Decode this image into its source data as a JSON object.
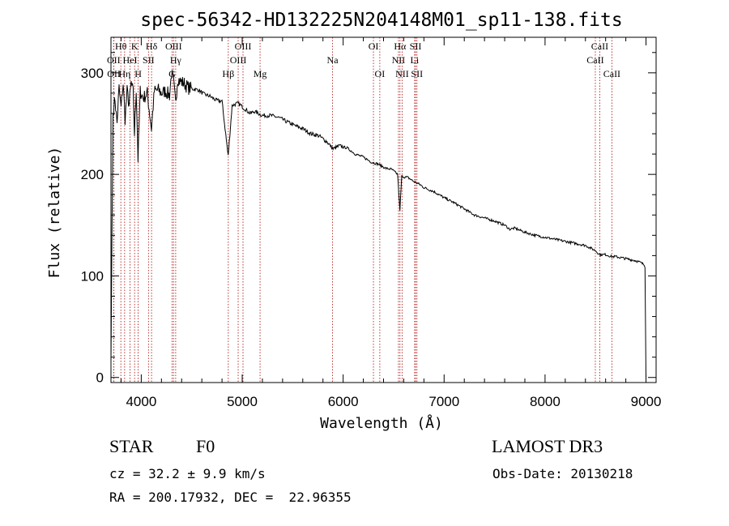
{
  "chart_data": {
    "type": "line",
    "title": "spec-56342-HD132225N204148M01_sp11-138.fits",
    "xlabel": "Wavelength (Å)",
    "ylabel": "Flux (relative)",
    "xlim": [
      3700,
      9100
    ],
    "ylim": [
      -5,
      335
    ],
    "x_ticks": [
      4000,
      5000,
      6000,
      7000,
      8000,
      9000
    ],
    "y_ticks": [
      0,
      100,
      200,
      300
    ],
    "series": [
      {
        "name": "spectrum",
        "x": [
          3700,
          3710,
          3720,
          3740,
          3760,
          3780,
          3800,
          3820,
          3840,
          3860,
          3880,
          3900,
          3920,
          3933,
          3950,
          3968,
          3990,
          4020,
          4060,
          4101,
          4130,
          4170,
          4200,
          4240,
          4280,
          4300,
          4320,
          4340,
          4361,
          4380,
          4420,
          4470,
          4520,
          4570,
          4620,
          4680,
          4740,
          4800,
          4861,
          4900,
          4960,
          5020,
          5080,
          5120,
          5200,
          5280,
          5360,
          5440,
          5520,
          5600,
          5680,
          5760,
          5840,
          5900,
          5960,
          6040,
          6120,
          6200,
          6280,
          6350,
          6420,
          6480,
          6540,
          6562,
          6580,
          6640,
          6700,
          6760,
          6800,
          6900,
          7000,
          7100,
          7200,
          7300,
          7400,
          7500,
          7600,
          7650,
          7700,
          7800,
          7900,
          8000,
          8100,
          8200,
          8300,
          8400,
          8498,
          8542,
          8600,
          8662,
          8700,
          8800,
          8900,
          8950,
          8980,
          8990,
          9000
        ],
        "y": [
          15,
          140,
          260,
          275,
          250,
          285,
          265,
          290,
          255,
          282,
          268,
          290,
          280,
          240,
          285,
          215,
          282,
          275,
          280,
          245,
          282,
          283,
          280,
          282,
          278,
          300,
          290,
          270,
          295,
          292,
          290,
          285,
          284,
          283,
          279,
          277,
          273,
          272,
          218,
          268,
          270,
          265,
          260,
          262,
          258,
          258,
          256,
          252,
          248,
          245,
          240,
          238,
          232,
          225,
          228,
          226,
          220,
          217,
          212,
          210,
          206,
          205,
          200,
          164,
          198,
          197,
          193,
          190,
          187,
          183,
          177,
          172,
          166,
          160,
          157,
          154,
          150,
          146,
          147,
          143,
          140,
          138,
          136,
          134,
          132,
          130,
          125,
          121,
          121,
          119,
          119,
          117,
          115,
          113,
          111,
          108,
          0
        ]
      }
    ],
    "lines": [
      {
        "label": "Hθ",
        "x": 3798,
        "row": 0
      },
      {
        "label": "OII",
        "x": 3727,
        "row": 1
      },
      {
        "label": "OII",
        "x": 3729,
        "row": 2
      },
      {
        "label": "Hη",
        "x": 3835,
        "row": 2
      },
      {
        "label": "HeI",
        "x": 3889,
        "row": 1
      },
      {
        "label": "K",
        "x": 3934,
        "row": 0
      },
      {
        "label": "H",
        "x": 3969,
        "row": 2
      },
      {
        "label": "SII",
        "x": 4072,
        "row": 1
      },
      {
        "label": "Hδ",
        "x": 4102,
        "row": 0
      },
      {
        "label": "OIII",
        "x": 4320,
        "row": 0
      },
      {
        "label": "Hγ",
        "x": 4341,
        "row": 1
      },
      {
        "label": "G",
        "x": 4305,
        "row": 2
      },
      {
        "label": "Hβ",
        "x": 4862,
        "row": 2
      },
      {
        "label": "OIII",
        "x": 4960,
        "row": 1
      },
      {
        "label": "OIII",
        "x": 5008,
        "row": 0
      },
      {
        "label": "Mg",
        "x": 5177,
        "row": 2
      },
      {
        "label": "Na",
        "x": 5895,
        "row": 1
      },
      {
        "label": "OI",
        "x": 6300,
        "row": 0
      },
      {
        "label": "OI",
        "x": 6363,
        "row": 2
      },
      {
        "label": "Hα",
        "x": 6563,
        "row": 0
      },
      {
        "label": "NII",
        "x": 6548,
        "row": 1
      },
      {
        "label": "NII",
        "x": 6584,
        "row": 2
      },
      {
        "label": "SII",
        "x": 6717,
        "row": 0
      },
      {
        "label": "Li",
        "x": 6708,
        "row": 1
      },
      {
        "label": "SII",
        "x": 6731,
        "row": 2
      },
      {
        "label": "CaII",
        "x": 8498,
        "row": 1
      },
      {
        "label": "CaII",
        "x": 8542,
        "row": 0
      },
      {
        "label": "CaII",
        "x": 8662,
        "row": 2
      }
    ]
  },
  "info": {
    "object_type": "STAR",
    "subclass": "F0",
    "survey": "LAMOST DR3",
    "cz": "cz = 32.2 ± 9.9 km/s",
    "obs_date": "Obs-Date: 20130218",
    "coords": "RA = 200.17932, DEC =  22.96355"
  },
  "colors": {
    "line_marker": "#b22222",
    "spectrum": "#000000"
  }
}
